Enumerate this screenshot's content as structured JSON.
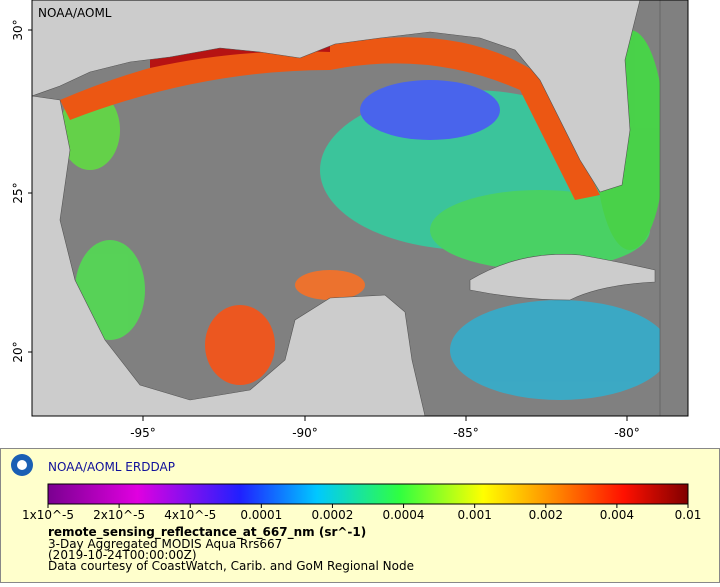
{
  "map": {
    "credit": "NOAA/AOML",
    "lat_labels": [
      "30°",
      "25°",
      "20°"
    ],
    "lon_labels": [
      "-95°",
      "-90°",
      "-85°",
      "-80°"
    ]
  },
  "legend": {
    "title": "NOAA/AOML ERDDAP",
    "scale_labels": [
      "1x10^-5",
      "2x10^-5",
      "4x10^-5",
      "0.0001",
      "0.0002",
      "0.0004",
      "0.001",
      "0.002",
      "0.004",
      "0.01"
    ],
    "variable": "remote_sensing_reflectance_at_667_nm (sr^-1)",
    "lines": [
      "3-Day Aggregated MODIS Aqua Rrs667",
      "(2019-10-24T00:00:00Z)",
      "Data courtesy of CoastWatch, Carib. and GoM Regional Node"
    ]
  }
}
